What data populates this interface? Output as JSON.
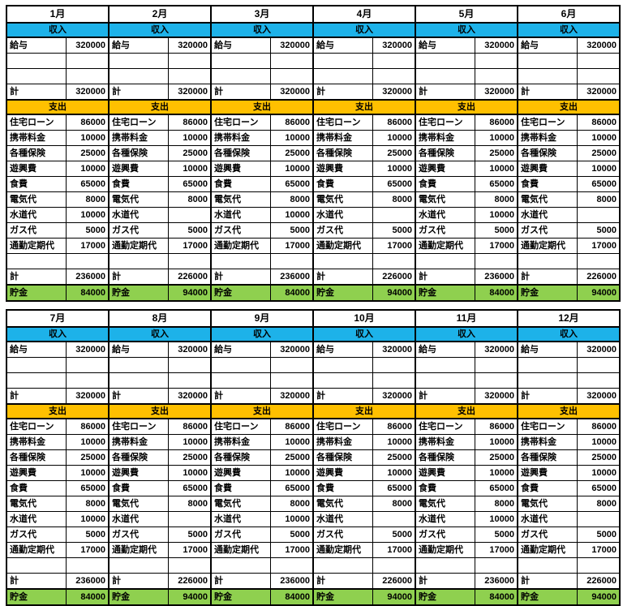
{
  "labels": {
    "income_header": "収入",
    "expense_header": "支出",
    "salary": "給与",
    "total": "計",
    "savings": "貯金",
    "expense_items": [
      "住宅ローン",
      "携帯料金",
      "各種保険",
      "遊興費",
      "食費",
      "電気代",
      "水道代",
      "ガス代",
      "通勤定期代"
    ]
  },
  "colors": {
    "income_header_bg": "#1db2e9",
    "expense_header_bg": "#ffc000",
    "savings_bg": "#8fd04f",
    "border": "#000000"
  },
  "months": [
    {
      "name": "1月",
      "salary": "320000",
      "income_total": "320000",
      "expense_values": [
        "86000",
        "10000",
        "25000",
        "10000",
        "65000",
        "8000",
        "10000",
        "5000",
        "17000"
      ],
      "expense_total": "236000",
      "savings": "84000"
    },
    {
      "name": "2月",
      "salary": "320000",
      "income_total": "320000",
      "expense_values": [
        "86000",
        "10000",
        "25000",
        "10000",
        "65000",
        "8000",
        "",
        "5000",
        "17000"
      ],
      "expense_total": "226000",
      "savings": "94000"
    },
    {
      "name": "3月",
      "salary": "320000",
      "income_total": "320000",
      "expense_values": [
        "86000",
        "10000",
        "25000",
        "10000",
        "65000",
        "8000",
        "10000",
        "5000",
        "17000"
      ],
      "expense_total": "236000",
      "savings": "84000"
    },
    {
      "name": "4月",
      "salary": "320000",
      "income_total": "320000",
      "expense_values": [
        "86000",
        "10000",
        "25000",
        "10000",
        "65000",
        "8000",
        "",
        "5000",
        "17000"
      ],
      "expense_total": "226000",
      "savings": "94000"
    },
    {
      "name": "5月",
      "salary": "320000",
      "income_total": "320000",
      "expense_values": [
        "86000",
        "10000",
        "25000",
        "10000",
        "65000",
        "8000",
        "10000",
        "5000",
        "17000"
      ],
      "expense_total": "236000",
      "savings": "84000"
    },
    {
      "name": "6月",
      "salary": "320000",
      "income_total": "320000",
      "expense_values": [
        "86000",
        "10000",
        "25000",
        "10000",
        "65000",
        "8000",
        "",
        "5000",
        "17000"
      ],
      "expense_total": "226000",
      "savings": "94000"
    },
    {
      "name": "7月",
      "salary": "320000",
      "income_total": "320000",
      "expense_values": [
        "86000",
        "10000",
        "25000",
        "10000",
        "65000",
        "8000",
        "10000",
        "5000",
        "17000"
      ],
      "expense_total": "236000",
      "savings": "84000"
    },
    {
      "name": "8月",
      "salary": "320000",
      "income_total": "320000",
      "expense_values": [
        "86000",
        "10000",
        "25000",
        "10000",
        "65000",
        "8000",
        "",
        "5000",
        "17000"
      ],
      "expense_total": "226000",
      "savings": "94000"
    },
    {
      "name": "9月",
      "salary": "320000",
      "income_total": "320000",
      "expense_values": [
        "86000",
        "10000",
        "25000",
        "10000",
        "65000",
        "8000",
        "10000",
        "5000",
        "17000"
      ],
      "expense_total": "236000",
      "savings": "84000"
    },
    {
      "name": "10月",
      "salary": "320000",
      "income_total": "320000",
      "expense_values": [
        "86000",
        "10000",
        "25000",
        "10000",
        "65000",
        "8000",
        "",
        "5000",
        "17000"
      ],
      "expense_total": "226000",
      "savings": "94000"
    },
    {
      "name": "11月",
      "salary": "320000",
      "income_total": "320000",
      "expense_values": [
        "86000",
        "10000",
        "25000",
        "10000",
        "65000",
        "8000",
        "10000",
        "5000",
        "17000"
      ],
      "expense_total": "236000",
      "savings": "84000"
    },
    {
      "name": "12月",
      "salary": "320000",
      "income_total": "320000",
      "expense_values": [
        "86000",
        "10000",
        "25000",
        "10000",
        "65000",
        "8000",
        "",
        "5000",
        "17000"
      ],
      "expense_total": "226000",
      "savings": "94000"
    }
  ]
}
